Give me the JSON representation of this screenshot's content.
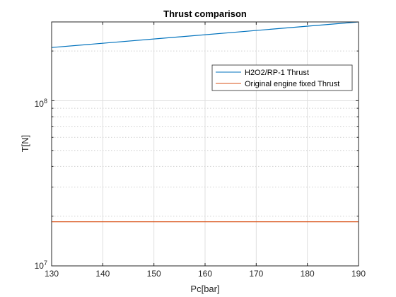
{
  "chart_data": {
    "type": "line",
    "title": "Thrust comparison",
    "xlabel": "Pc[bar]",
    "ylabel": "T[N]",
    "xlim": [
      130,
      190
    ],
    "ylim": [
      10000000,
      300000000
    ],
    "yscale": "log",
    "grid": true,
    "minor_grid": true,
    "legend_position": "top-right (inside)",
    "x_ticks": [
      "130",
      "140",
      "150",
      "160",
      "170",
      "180",
      "190"
    ],
    "y_tick_labels": {
      "major_1": {
        "base": "10",
        "exp": "7"
      },
      "major_2": {
        "base": "10",
        "exp": "8"
      }
    },
    "series": [
      {
        "name": "H2O2/RP-1 Thrust",
        "color": "#0072BD",
        "x": [
          130,
          190
        ],
        "y": [
          210000000,
          300000000
        ]
      },
      {
        "name": "Original engine fixed Thrust",
        "color": "#D95319",
        "x": [
          130,
          190
        ],
        "y": [
          18500000,
          18500000
        ]
      }
    ]
  }
}
